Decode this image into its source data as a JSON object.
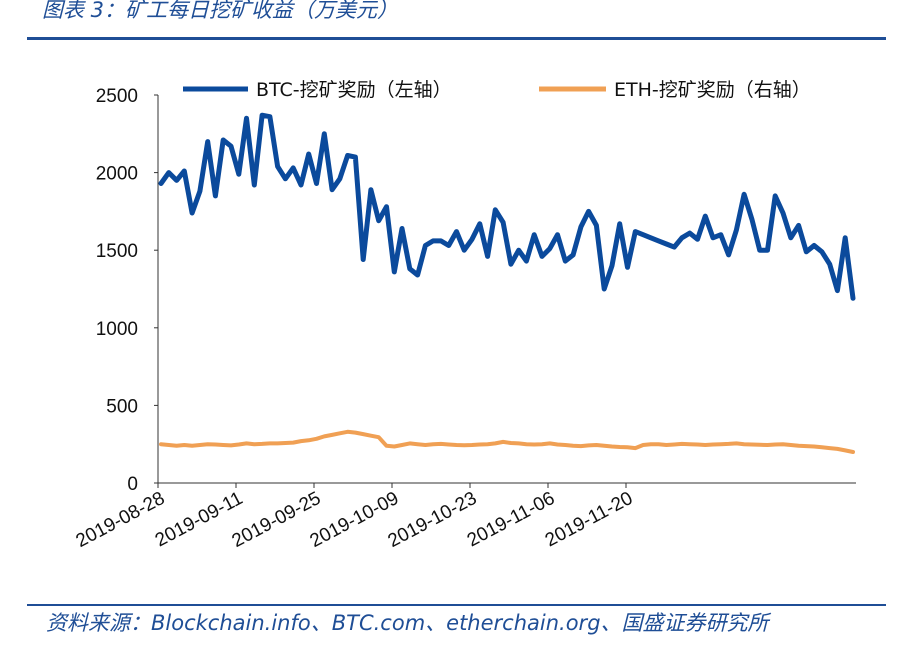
{
  "caption": "图表 3：矿工每日挖矿收益（万美元）",
  "source": "资料来源：Blockchain.info、BTC.com、etherchain.org、国盛证券研究所",
  "colors": {
    "accent": "#1f4e96",
    "btc": "#0b4a9c",
    "eth": "#f0a054"
  },
  "chart_data": {
    "type": "line",
    "title": "",
    "xlabel": "",
    "ylabel": "",
    "ylim": [
      0,
      2500
    ],
    "y_ticks": [
      "0",
      "500",
      "1000",
      "1500",
      "2000",
      "2500"
    ],
    "x_ticks": [
      "2019-08-28",
      "2019-09-11",
      "2019-09-25",
      "2019-10-09",
      "2019-10-23",
      "2019-11-06",
      "2019-11-20"
    ],
    "legend_position": "top",
    "series": [
      {
        "name": "BTC-挖矿奖励（左轴）",
        "axis": "left",
        "values": [
          1930,
          2000,
          1950,
          2010,
          1740,
          1880,
          2200,
          1850,
          2210,
          2170,
          1990,
          2350,
          1920,
          2370,
          2360,
          2040,
          1960,
          2030,
          1920,
          2120,
          1930,
          2250,
          1890,
          1960,
          2110,
          2100,
          1440,
          1890,
          1690,
          1780,
          1360,
          1640,
          1380,
          1340,
          1530,
          1560,
          1560,
          1530,
          1620,
          1500,
          1570,
          1670,
          1460,
          1760,
          1680,
          1410,
          1500,
          1430,
          1600,
          1460,
          1510,
          1600,
          1430,
          1470,
          1650,
          1750,
          1660,
          1250,
          1400,
          1670,
          1390,
          1620,
          1600,
          1580,
          1560,
          1540,
          1520,
          1580,
          1610,
          1570,
          1720,
          1580,
          1600,
          1470,
          1630,
          1860,
          1700,
          1500,
          1500,
          1850,
          1740,
          1580,
          1660,
          1490,
          1530,
          1490,
          1410,
          1240,
          1580,
          1190
        ]
      },
      {
        "name": "ETH-挖矿奖励（右轴）",
        "axis": "right",
        "values": [
          250,
          245,
          240,
          245,
          240,
          245,
          250,
          248,
          245,
          242,
          248,
          255,
          250,
          252,
          255,
          255,
          258,
          260,
          270,
          275,
          285,
          300,
          310,
          320,
          330,
          325,
          315,
          305,
          295,
          240,
          235,
          245,
          255,
          250,
          245,
          250,
          252,
          248,
          245,
          243,
          245,
          248,
          250,
          255,
          265,
          258,
          255,
          250,
          248,
          250,
          255,
          248,
          245,
          240,
          238,
          242,
          245,
          240,
          235,
          232,
          230,
          225,
          245,
          250,
          250,
          245,
          248,
          252,
          250,
          248,
          245,
          248,
          250,
          252,
          255,
          250,
          248,
          246,
          245,
          248,
          250,
          245,
          240,
          238,
          235,
          230,
          225,
          220,
          210,
          200
        ]
      }
    ]
  }
}
